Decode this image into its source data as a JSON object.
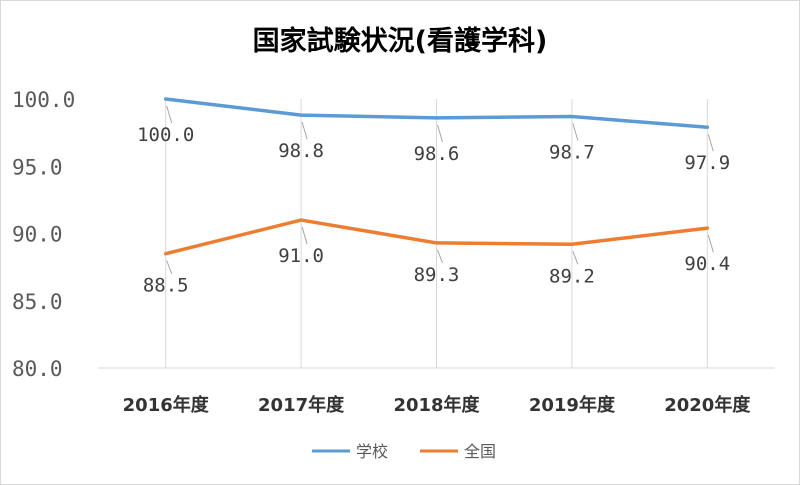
{
  "chart_data": {
    "type": "line",
    "title": "国家試験状況(看護学科)",
    "categories": [
      "2016年度",
      "2017年度",
      "2018年度",
      "2019年度",
      "2020年度"
    ],
    "ylim": [
      80.0,
      100.0
    ],
    "yticks": [
      "80.0",
      "85.0",
      "90.0",
      "95.0",
      "100.0"
    ],
    "ytick_values": [
      80,
      85,
      90,
      95,
      100
    ],
    "grid": "vertical",
    "legend_position": "bottom",
    "series": [
      {
        "name": "学校",
        "color": "#5b9bd5",
        "values": [
          100.0,
          98.8,
          98.6,
          98.7,
          97.9
        ],
        "labels": [
          "100.0",
          "98.8",
          "98.6",
          "98.7",
          "97.9"
        ]
      },
      {
        "name": "全国",
        "color": "#ed7d31",
        "values": [
          88.5,
          91.0,
          89.3,
          89.2,
          90.4
        ],
        "labels": [
          "88.5",
          "91.0",
          "89.3",
          "89.2",
          "90.4"
        ]
      }
    ]
  }
}
